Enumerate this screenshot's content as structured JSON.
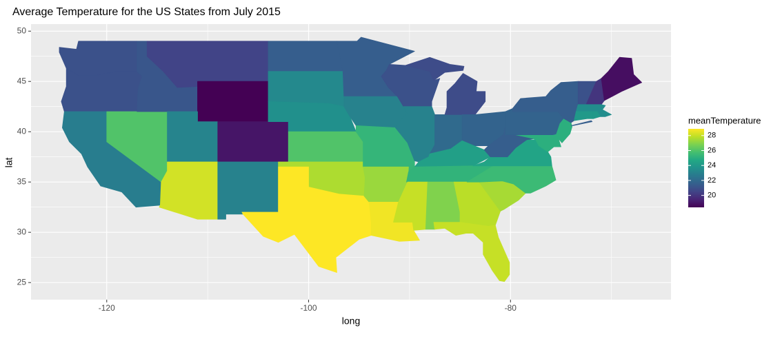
{
  "chart_data": {
    "type": "choropleth",
    "title": "Average Temperature for the US States from July 2015",
    "x_label": "long",
    "y_label": "lat",
    "xlim": [
      -127.5,
      -64.1
    ],
    "ylim": [
      23.3,
      50.7
    ],
    "xticks": [
      -120,
      -100,
      -80
    ],
    "yticks": [
      25,
      30,
      35,
      40,
      45,
      50
    ],
    "grid": true,
    "legend_title": "meanTemperature",
    "colorlim": [
      18.4,
      28.9
    ],
    "colorticks": [
      20,
      22,
      24,
      26,
      28
    ],
    "palette": [
      "#440154",
      "#482475",
      "#414487",
      "#355f8d",
      "#2a788e",
      "#21918c",
      "#22a884",
      "#44bf70",
      "#7ad151",
      "#bddf26",
      "#fde725"
    ],
    "values": [
      21,
      21,
      22.8,
      26,
      21.2,
      20.5,
      18.4,
      23.1,
      19,
      28.2,
      23,
      21.5,
      23.3,
      23.6,
      26,
      27.6,
      28.9,
      21.5,
      23,
      25.3,
      27.3,
      28.7,
      21,
      23,
      22,
      20.8,
      21.7,
      24.3,
      25.2,
      28,
      26.9,
      27.8,
      28,
      27.5,
      25.5,
      24.5,
      21.5,
      25,
      25,
      21.7,
      25,
      21.5,
      21,
      20,
      18.8,
      23.5,
      24,
      24
    ]
  }
}
